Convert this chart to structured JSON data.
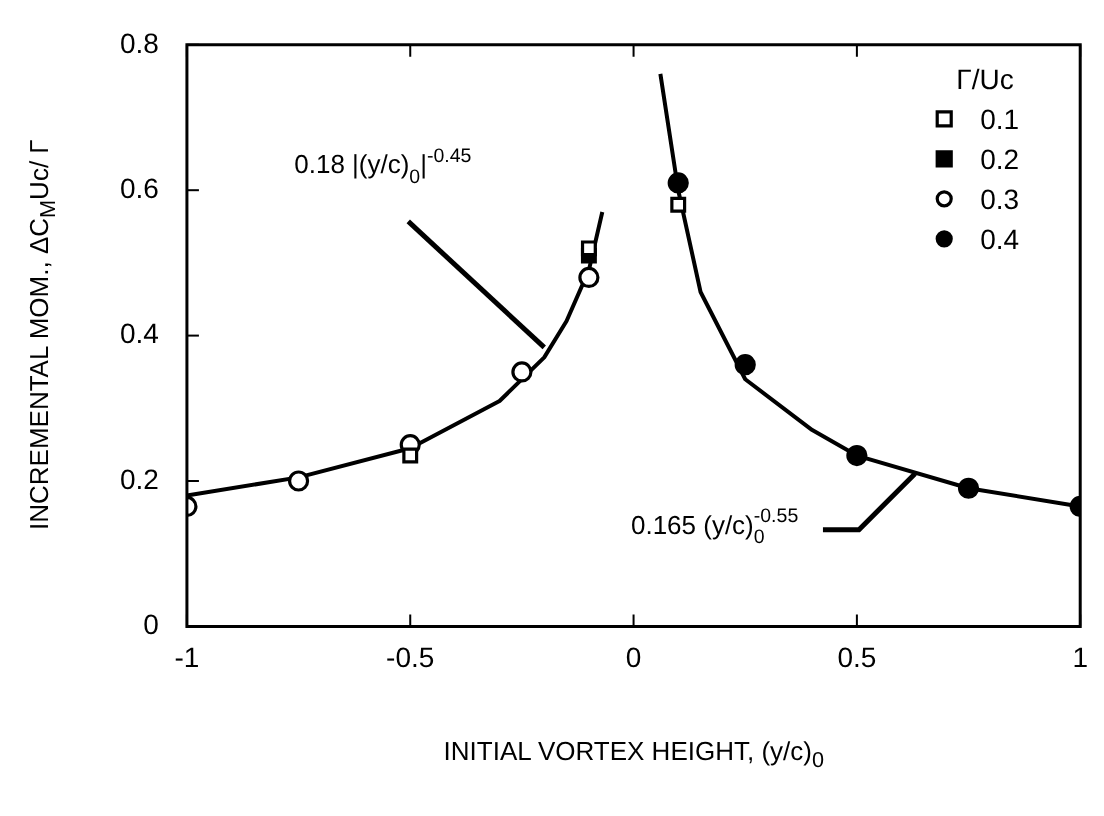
{
  "chart_data": {
    "type": "scatter",
    "xlabel": "INITIAL VORTEX HEIGHT, (y/c)$_{0}$",
    "ylabel": "INCREMENTAL MOM., ΔC$_{M}$Uc/ Γ",
    "legend_title": "Γ/Uc",
    "legend": "top right",
    "xlim": [
      -1,
      1
    ],
    "ylim": [
      0,
      0.8
    ],
    "xticks": [
      -1,
      -0.5,
      0,
      0.5,
      1
    ],
    "yticks": [
      0,
      0.2,
      0.4,
      0.6,
      0.8
    ],
    "grid": false,
    "series": [
      {
        "name": "0.1",
        "color": "#ffffff",
        "marker": "square",
        "x": [
          -0.5,
          -0.1,
          0.1
        ],
        "values": [
          0.235,
          0.52,
          0.58
        ]
      },
      {
        "name": "0.2",
        "color": "#000000",
        "marker": "square",
        "x": [
          -0.1
        ],
        "values": [
          0.51
        ]
      },
      {
        "name": "0.3",
        "color": "#ffffff",
        "marker": "circle",
        "x": [
          -1,
          -0.75,
          -0.5,
          -0.25,
          -0.1
        ],
        "values": [
          0.165,
          0.2,
          0.25,
          0.35,
          0.48
        ]
      },
      {
        "name": "0.4",
        "color": "#000000",
        "marker": "circle",
        "x": [
          0.1,
          0.25,
          0.5,
          0.75,
          1
        ],
        "values": [
          0.61,
          0.36,
          0.235,
          0.19,
          0.165
        ]
      },
      {
        "type": "line",
        "color": "#000000",
        "marker": "none",
        "x": [
          -1,
          -0.75,
          -0.5,
          -0.3,
          -0.2,
          -0.15,
          -0.1,
          -0.07
        ],
        "values": [
          0.18,
          0.205,
          0.245,
          0.31,
          0.37,
          0.42,
          0.49,
          0.57
        ]
      },
      {
        "type": "line",
        "color": "#000000",
        "marker": "none",
        "x": [
          0.06,
          0.1,
          0.15,
          0.25,
          0.4,
          0.5,
          0.75,
          1
        ],
        "values": [
          0.76,
          0.6,
          0.46,
          0.34,
          0.27,
          0.235,
          0.19,
          0.165
        ]
      }
    ],
    "annotations": [
      {
        "text": "0.18 |(y/c)$_{0}$|$^{-0.45}$",
        "x": -0.2,
        "y": 0.37
      },
      {
        "text": "0.165 (y/c)$_{0}$$^{-0.55}$",
        "x": 0.63,
        "y": 0.21
      }
    ]
  }
}
